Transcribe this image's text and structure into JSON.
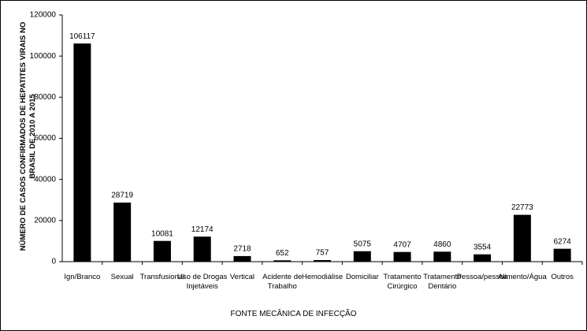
{
  "chart_data": {
    "type": "bar",
    "y_label": "NÚMERO DE CASOS CONFIRMADOS DE HEPATITES VIRAIS NO BRASIL DE 2010 A 2015",
    "x_label": "FONTE MECÂNICA DE INFECÇÃO",
    "categories": [
      "Ign/Branco",
      "Sexual",
      "Transfusional",
      "Uso de Drogas Injetáveis",
      "Vertical",
      "Acidente de Trabalho",
      "Hemodiálise",
      "Domiciliar",
      "Tratamento Cirúrgico",
      "Tratamento Dentário",
      "Pessoa/pessoa",
      "Alimento/Água",
      "Outros"
    ],
    "values": [
      106117,
      28719,
      10081,
      12174,
      2718,
      652,
      757,
      5075,
      4707,
      4860,
      3554,
      22773,
      6274
    ],
    "color": "#000000",
    "ylim": [
      0,
      120000
    ],
    "yticks": [
      0,
      20000,
      40000,
      60000,
      80000,
      100000,
      120000
    ],
    "grid": false
  }
}
